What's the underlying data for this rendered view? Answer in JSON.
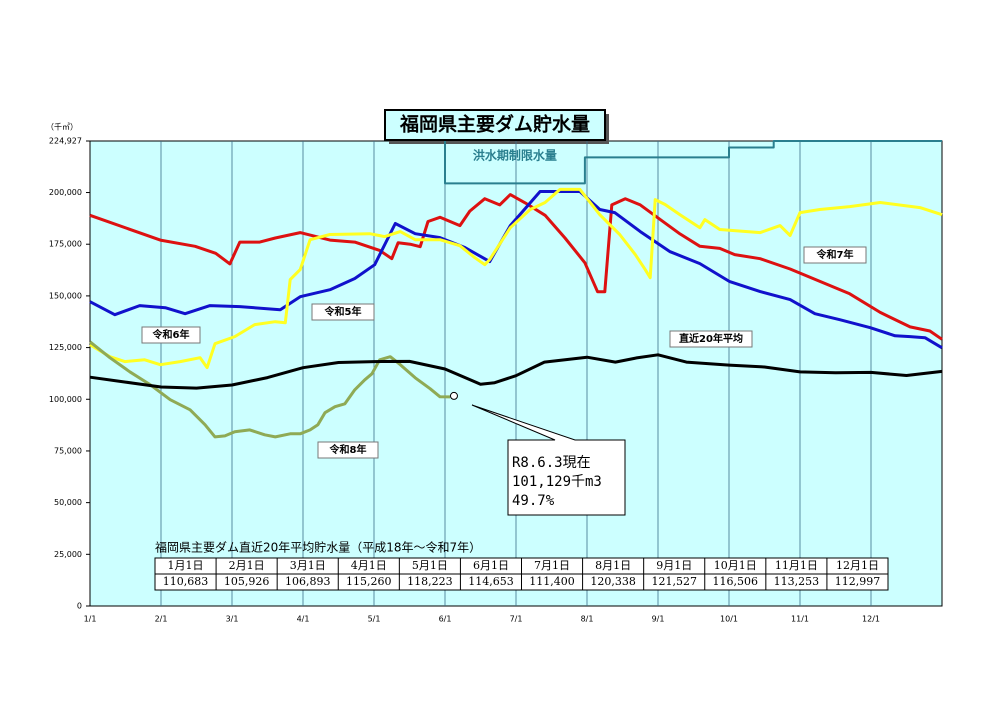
{
  "chart_data": {
    "type": "line",
    "title": "福岡県主要ダム貯水量",
    "y_unit": "（千㎥）",
    "xlim": [
      0,
      12
    ],
    "xticks": [
      {
        "value": 0,
        "label": "1/1"
      },
      {
        "value": 1,
        "label": "2/1"
      },
      {
        "value": 2,
        "label": "3/1"
      },
      {
        "value": 3,
        "label": "4/1"
      },
      {
        "value": 4,
        "label": "5/1"
      },
      {
        "value": 5,
        "label": "6/1"
      },
      {
        "value": 6,
        "label": "7/1"
      },
      {
        "value": 7,
        "label": "8/1"
      },
      {
        "value": 8,
        "label": "9/1"
      },
      {
        "value": 9,
        "label": "10/1"
      },
      {
        "value": 10,
        "label": "11/1"
      },
      {
        "value": 11,
        "label": "12/1"
      }
    ],
    "ylim": [
      0,
      224927
    ],
    "yticks": [
      0,
      {
        "value": 25000,
        "label": "25,000"
      },
      {
        "value": 50000,
        "label": "50,000"
      },
      {
        "value": 75000,
        "label": "75,000"
      },
      {
        "value": 100000,
        "label": "100,000"
      },
      {
        "value": 125000,
        "label": "125,000"
      },
      {
        "value": 150000,
        "label": "150,000"
      },
      {
        "value": 175000,
        "label": "175,000"
      },
      {
        "value": 200000,
        "label": "200,000"
      },
      {
        "value": 224927,
        "label": "224,927"
      }
    ],
    "grid": "x",
    "series": [
      {
        "name": "洪水期制限水量",
        "color": "#2a7f8f",
        "x": [
          5.0,
          5.0,
          6.97,
          6.97,
          9.0,
          9.0,
          9.63,
          9.63,
          12
        ],
        "values": [
          224927,
          204400,
          204400,
          217000,
          217000,
          221800,
          221800,
          224927,
          224927
        ]
      },
      {
        "name": "令和7年",
        "color": "#dd1111",
        "x": [
          0,
          0.99,
          1.48,
          1.77,
          1.97,
          2.11,
          2.39,
          2.61,
          2.96,
          3.38,
          3.73,
          4.08,
          4.25,
          4.34,
          4.51,
          4.65,
          4.76,
          4.93,
          5.21,
          5.35,
          5.56,
          5.77,
          5.92,
          6.13,
          6.41,
          6.69,
          6.97,
          7.15,
          7.25,
          7.35,
          7.54,
          7.75,
          8.03,
          8.31,
          8.59,
          8.87,
          9.08,
          9.44,
          9.86,
          10.28,
          10.7,
          11.13,
          11.55,
          11.83,
          12
        ],
        "values": [
          189000,
          177000,
          174000,
          170600,
          165500,
          176000,
          176000,
          178000,
          180600,
          177000,
          176000,
          172000,
          168000,
          175700,
          175000,
          173800,
          186000,
          188000,
          184000,
          191000,
          197000,
          194000,
          199000,
          195000,
          189000,
          178000,
          166000,
          152000,
          152000,
          194000,
          197000,
          194000,
          187000,
          180000,
          174000,
          173000,
          170000,
          168000,
          163000,
          157000,
          151000,
          142000,
          135000,
          133000,
          129000
        ]
      },
      {
        "name": "令和5年",
        "color": "#1111cc",
        "x": [
          0,
          0.35,
          0.7,
          1.06,
          1.34,
          1.69,
          2.11,
          2.68,
          2.96,
          3.38,
          3.73,
          4.01,
          4.3,
          4.58,
          4.93,
          5.28,
          5.63,
          5.92,
          6.34,
          6.9,
          7.18,
          7.39,
          7.75,
          8.17,
          8.59,
          9.01,
          9.44,
          9.86,
          10.21,
          10.56,
          10.99,
          11.34,
          11.55,
          11.76,
          12
        ],
        "values": [
          147200,
          140900,
          145300,
          144300,
          141400,
          145300,
          144800,
          143300,
          149600,
          153000,
          158400,
          165100,
          185000,
          180100,
          178200,
          173400,
          166600,
          184000,
          200500,
          200500,
          191800,
          190300,
          181100,
          171400,
          165600,
          156900,
          152100,
          148200,
          141400,
          138500,
          134600,
          130700,
          130300,
          129800,
          124900
        ]
      },
      {
        "name": "令和6年",
        "color": "#ffff22",
        "x": [
          0,
          0.28,
          0.49,
          0.77,
          0.99,
          1.27,
          1.55,
          1.65,
          1.76,
          2.04,
          2.32,
          2.61,
          2.75,
          2.82,
          2.96,
          3.1,
          3.38,
          3.94,
          4.15,
          4.37,
          4.58,
          4.93,
          5.21,
          5.42,
          5.56,
          5.63,
          5.92,
          6.2,
          6.41,
          6.62,
          6.9,
          7.18,
          7.46,
          7.68,
          7.82,
          7.89,
          7.96,
          8.1,
          8.31,
          8.59,
          8.66,
          8.87,
          9.44,
          9.72,
          9.86,
          10.0,
          10.28,
          10.7,
          11.13,
          11.69,
          12
        ],
        "values": [
          126400,
          120600,
          118200,
          119100,
          116700,
          118200,
          120100,
          115300,
          126900,
          130300,
          136100,
          137500,
          137000,
          157900,
          162700,
          177200,
          179700,
          180100,
          178700,
          181100,
          177200,
          177200,
          174300,
          168500,
          165100,
          167600,
          183000,
          191800,
          195200,
          201500,
          201500,
          189300,
          179700,
          170000,
          162700,
          158800,
          196600,
          194200,
          189300,
          183000,
          186900,
          182100,
          180600,
          184000,
          179200,
          190300,
          191800,
          193200,
          195200,
          192700,
          189300
        ]
      },
      {
        "name": "令和8年",
        "color": "#8faa55",
        "x": [
          0,
          0.28,
          0.56,
          0.85,
          1.13,
          1.41,
          1.62,
          1.76,
          1.9,
          2.04,
          2.25,
          2.46,
          2.61,
          2.82,
          2.96,
          3.1,
          3.21,
          3.31,
          3.45,
          3.59,
          3.73,
          3.87,
          3.97,
          4.08,
          4.23,
          4.37,
          4.58,
          4.79,
          4.93,
          5.07
        ],
        "values": [
          127800,
          120100,
          113300,
          107000,
          99800,
          94900,
          87700,
          81800,
          82300,
          84300,
          85200,
          82800,
          81800,
          83300,
          83300,
          85200,
          87700,
          93500,
          96400,
          97800,
          104600,
          109400,
          112300,
          119100,
          120600,
          116700,
          110400,
          105100,
          101200,
          101129
        ]
      },
      {
        "name": "直近20年平均",
        "color": "#000000",
        "x": [
          0,
          0.5,
          1,
          1.5,
          2,
          2.5,
          3,
          3.5,
          4,
          4.5,
          5,
          5.5,
          5.7,
          6,
          6.4,
          7,
          7.4,
          7.7,
          8,
          8.4,
          9,
          9.5,
          10,
          10.5,
          11,
          11.5,
          12
        ],
        "values": [
          110683,
          108300,
          105926,
          105400,
          106893,
          110500,
          115260,
          117800,
          118223,
          118300,
          114653,
          107300,
          108000,
          111400,
          118000,
          120338,
          118000,
          120000,
          121527,
          118000,
          116506,
          115600,
          113253,
          112800,
          112997,
          111500,
          113500
        ]
      }
    ],
    "annotation": {
      "lines": [
        "R8.6.3現在",
        "101,129千m3",
        " 49.7%"
      ]
    },
    "table": {
      "title": "福岡県主要ダム直近20年平均貯水量（平成18年～令和7年）",
      "header": [
        "1月1日",
        "2月1日",
        "3月1日",
        "4月1日",
        "5月1日",
        "6月1日",
        "7月1日",
        "8月1日",
        "9月1日",
        "10月1日",
        "11月1日",
        "12月1日"
      ],
      "rows": [
        [
          "110,683",
          "105,926",
          "106,893",
          "115,260",
          "118,223",
          "114,653",
          "111,400",
          "120,338",
          "121,527",
          "116,506",
          "113,253",
          "112,997"
        ]
      ]
    }
  }
}
